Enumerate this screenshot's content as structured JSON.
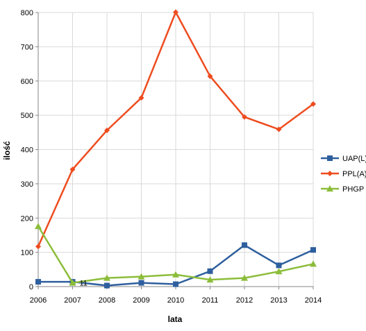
{
  "chart_data": {
    "type": "line",
    "xlabel": "lata",
    "ylabel": "ilość",
    "x": [
      "2006",
      "2007",
      "2008",
      "2009",
      "2010",
      "2011",
      "2012",
      "2013",
      "2014"
    ],
    "yticks": [
      "0",
      "100",
      "200",
      "300",
      "400",
      "500",
      "600",
      "700",
      "800"
    ],
    "ylim": [
      0,
      800
    ],
    "grid": "horizontal",
    "legend_position": "right",
    "series": [
      {
        "name": "UAP(L)",
        "color": "#2e5f9e",
        "marker": "square",
        "values": [
          14,
          14,
          3,
          11,
          7,
          45,
          121,
          62,
          107
        ]
      },
      {
        "name": "PPL(A)",
        "color": "#ee4c1f",
        "marker": "diamond",
        "values": [
          117,
          342,
          456,
          551,
          801,
          614,
          495,
          459,
          533
        ]
      },
      {
        "name": "PHGP",
        "color": "#8cbd3a",
        "marker": "triangle",
        "values": [
          176,
          11,
          25,
          29,
          35,
          20,
          25,
          44,
          66
        ]
      }
    ],
    "annotations": [
      {
        "text": "11",
        "x": "2007",
        "y": 11
      }
    ]
  }
}
